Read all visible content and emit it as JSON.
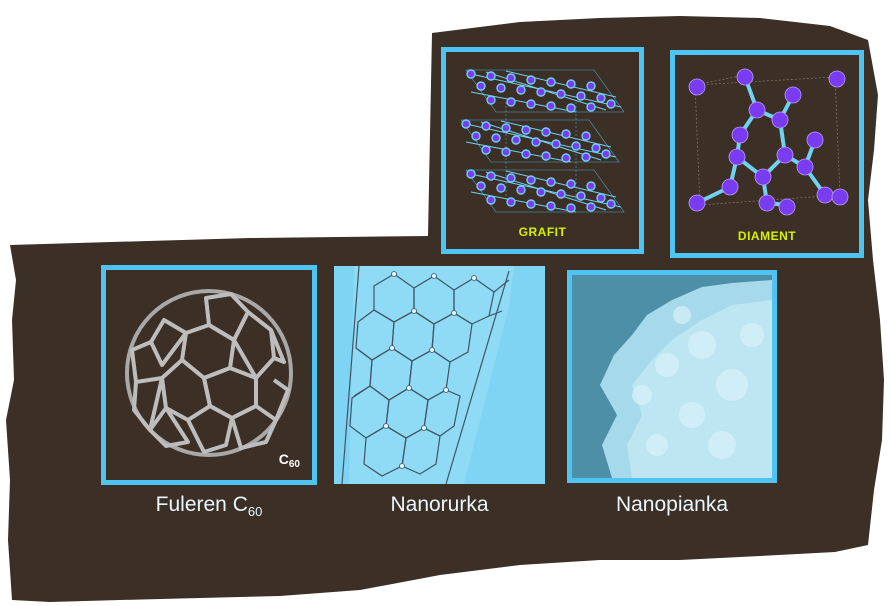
{
  "panels": {
    "grafit": {
      "label": "GRAFIT"
    },
    "diament": {
      "label": "DIAMENT"
    },
    "fuleren": {
      "corner_label": "C",
      "corner_sub": "60"
    },
    "nanorurka": {},
    "nanopianka": {}
  },
  "captions": {
    "fuleren": {
      "text": "Fuleren C",
      "sub": "60"
    },
    "nanorurka": {
      "text": "Nanorurka"
    },
    "nanopianka": {
      "text": "Nanopianka"
    }
  },
  "colors": {
    "screen_bg": "#3b2f26",
    "panel_border": "#4fc3f2",
    "atom": "#7a3cf0",
    "bond": "#6fd2f2",
    "label_yellow": "#d8f000"
  }
}
